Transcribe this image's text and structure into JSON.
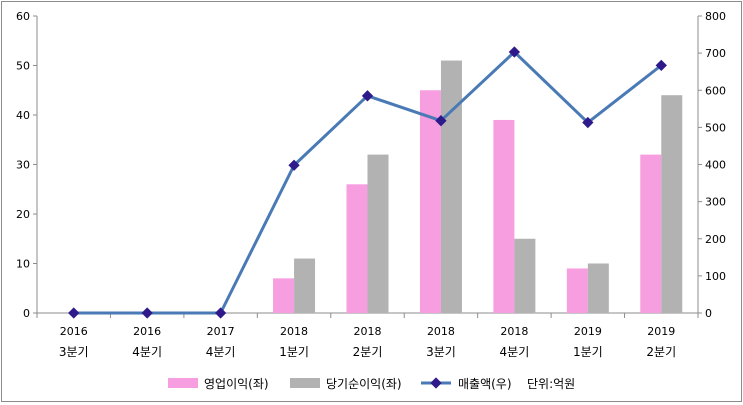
{
  "chart_data": {
    "type": "bar",
    "categories": [
      [
        "2016",
        "3분기"
      ],
      [
        "2016",
        "4분기"
      ],
      [
        "2017",
        "4분기"
      ],
      [
        "2018",
        "1분기"
      ],
      [
        "2018",
        "2분기"
      ],
      [
        "2018",
        "3분기"
      ],
      [
        "2018",
        "4분기"
      ],
      [
        "2019",
        "1분기"
      ],
      [
        "2019",
        "2분기"
      ]
    ],
    "series": [
      {
        "name": "영업이익(좌)",
        "type": "bar",
        "axis": "left",
        "color": "#f79ee0",
        "values": [
          0,
          0,
          0,
          7,
          26,
          45,
          39,
          9,
          32
        ]
      },
      {
        "name": "당기순이익(좌)",
        "type": "bar",
        "axis": "left",
        "color": "#b2b2b2",
        "values": [
          0,
          0,
          0,
          11,
          32,
          51,
          15,
          10,
          44
        ]
      },
      {
        "name": "매출액(우)",
        "type": "line",
        "axis": "right",
        "color": "#4a7ab5",
        "marker_color": "#2e1a8a",
        "values": [
          0,
          0,
          0,
          398,
          585,
          518,
          703,
          513,
          667
        ]
      }
    ],
    "y_left": {
      "min": 0,
      "max": 60,
      "ticks": [
        "0",
        "10",
        "20",
        "30",
        "40",
        "50",
        "60"
      ]
    },
    "y_right": {
      "min": 0,
      "max": 800,
      "ticks": [
        "0",
        "100",
        "200",
        "300",
        "400",
        "500",
        "600",
        "700",
        "800"
      ]
    },
    "unit_note": "단위:억원",
    "legend_position": "bottom",
    "grid": false
  }
}
